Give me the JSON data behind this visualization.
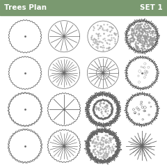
{
  "title_left": "Trees Plan",
  "title_right": "SET 1",
  "header_color": "#7a9970",
  "header_text_color": "#ffffff",
  "bg_color": "#ffffff",
  "stroke_color": "#666666",
  "grid_rows": 4,
  "grid_cols": 4
}
